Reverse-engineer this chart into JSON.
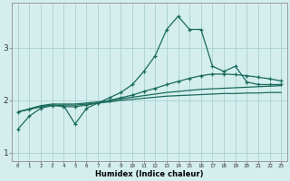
{
  "xlabel": "Humidex (Indice chaleur)",
  "background_color": "#d4eeee",
  "grid_color": "#aed4d4",
  "line_color": "#1a6b5a",
  "x_values": [
    0,
    1,
    2,
    3,
    4,
    5,
    6,
    7,
    8,
    9,
    10,
    11,
    12,
    13,
    14,
    15,
    16,
    17,
    18,
    19,
    20,
    21,
    22,
    23
  ],
  "line1": [
    1.45,
    1.7,
    1.85,
    1.9,
    1.9,
    1.55,
    1.85,
    1.95,
    2.05,
    2.15,
    2.3,
    2.55,
    2.85,
    3.35,
    3.6,
    3.35,
    3.35,
    2.65,
    2.55,
    2.65,
    2.35,
    2.3,
    2.3,
    2.3
  ],
  "line2": [
    1.78,
    1.83,
    1.88,
    1.91,
    1.88,
    1.88,
    1.91,
    1.95,
    2.0,
    2.05,
    2.1,
    2.17,
    2.23,
    2.3,
    2.36,
    2.42,
    2.47,
    2.5,
    2.5,
    2.49,
    2.47,
    2.44,
    2.41,
    2.37
  ],
  "line3": [
    1.78,
    1.84,
    1.9,
    1.93,
    1.93,
    1.93,
    1.95,
    1.97,
    1.99,
    2.03,
    2.06,
    2.09,
    2.12,
    2.15,
    2.17,
    2.19,
    2.21,
    2.22,
    2.23,
    2.24,
    2.25,
    2.26,
    2.27,
    2.28
  ],
  "line4": [
    1.78,
    1.83,
    1.88,
    1.91,
    1.91,
    1.91,
    1.93,
    1.95,
    1.97,
    2.0,
    2.02,
    2.04,
    2.06,
    2.08,
    2.09,
    2.1,
    2.11,
    2.12,
    2.13,
    2.13,
    2.14,
    2.14,
    2.15,
    2.15
  ],
  "yticks": [
    1,
    2,
    3
  ],
  "xtick_labels": [
    "0",
    "1",
    "2",
    "3",
    "4",
    "5",
    "6",
    "7",
    "8",
    "9",
    "10",
    "11",
    "12",
    "13",
    "14",
    "15",
    "16",
    "17",
    "18",
    "19",
    "20",
    "21",
    "22",
    "23"
  ],
  "ylim": [
    0.85,
    3.85
  ],
  "xlim": [
    -0.5,
    23.5
  ]
}
